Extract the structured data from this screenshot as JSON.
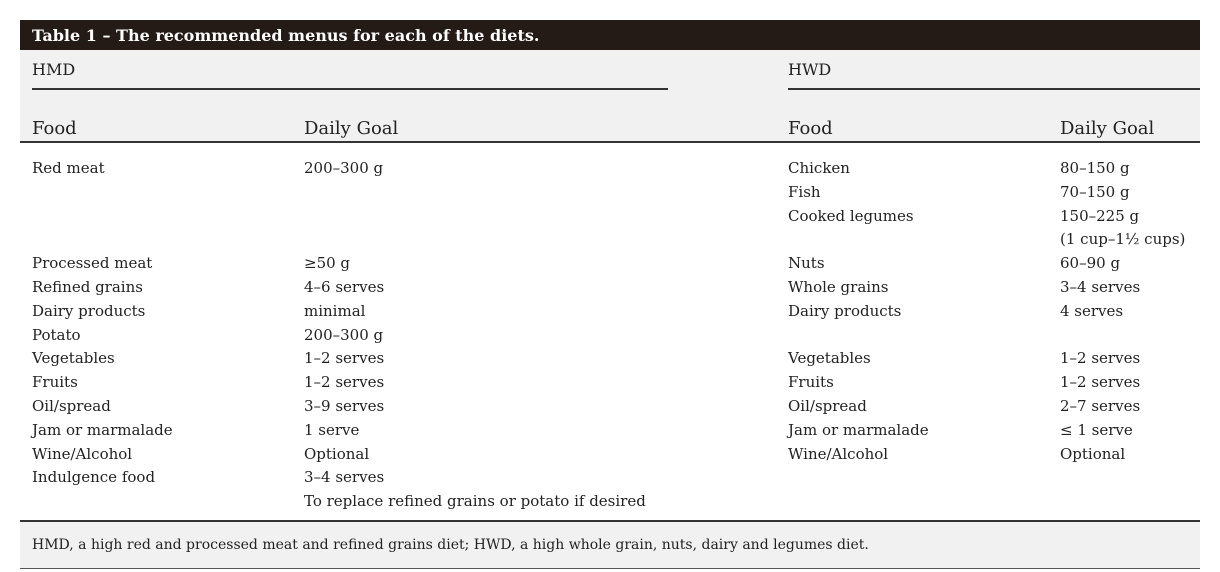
{
  "table": {
    "title": "Table 1 – The recommended menus for each of the diets.",
    "group_left": "HMD",
    "group_right": "HWD",
    "headers": [
      "Food",
      "Daily Goal",
      "Food",
      "Daily Goal"
    ],
    "rows": [
      [
        "Red meat",
        "200–300 g",
        "Chicken",
        "80–150 g"
      ],
      [
        "",
        "",
        "Fish",
        "70–150 g"
      ],
      [
        "",
        "",
        "Cooked legumes",
        "150–225 g"
      ],
      [
        "",
        "",
        "",
        "(1 cup–1½ cups)"
      ],
      [
        "Processed meat",
        "≥50 g",
        "Nuts",
        "60–90 g"
      ],
      [
        "Refined grains",
        "4–6 serves",
        "Whole grains",
        "3–4 serves"
      ],
      [
        "Dairy products",
        "minimal",
        "Dairy products",
        "4 serves"
      ],
      [
        "Potato",
        "200–300 g",
        "",
        ""
      ],
      [
        "Vegetables",
        "1–2 serves",
        "Vegetables",
        "1–2 serves"
      ],
      [
        "Fruits",
        "1–2 serves",
        "Fruits",
        "1–2 serves"
      ],
      [
        "Oil/spread",
        "3–9 serves",
        "Oil/spread",
        "2–7 serves"
      ],
      [
        "Jam or marmalade",
        "1 serve",
        "Jam or marmalade",
        "≤ 1 serve"
      ],
      [
        "Wine/Alcohol",
        "Optional",
        "Wine/Alcohol",
        "Optional"
      ],
      [
        "Indulgence food",
        "3–4 serves",
        "",
        ""
      ],
      [
        "",
        "To replace refined grains or potato if desired",
        "",
        ""
      ]
    ],
    "footnote": "HMD, a high red and processed meat and refined grains diet; HWD, a high whole grain, nuts, dairy and legumes diet."
  }
}
